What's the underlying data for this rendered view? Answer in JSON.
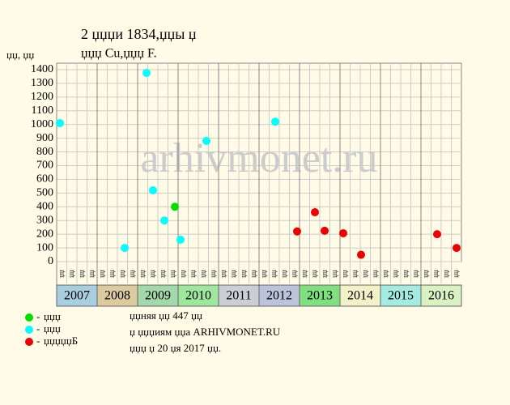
{
  "chart_data": {
    "type": "scatter",
    "title": "2 џџџи 1834,џџы џ",
    "subtitle": "џџџ Cu,џџџ F.",
    "y_label": "џџ, џџ",
    "watermark": "arhivmonet.ru",
    "xlim": [
      2007,
      2017
    ],
    "xticks": [
      2007,
      2008,
      2009,
      2010,
      2011,
      2012,
      2013,
      2014,
      2015,
      2016
    ],
    "xtick_colors": [
      "#a8cfe0",
      "#dccb9e",
      "#a2d8aa",
      "#9ee89e",
      "#cdcdd8",
      "#bcc4dc",
      "#80e080",
      "#f2f2c8",
      "#a4ece2",
      "#daf2c2"
    ],
    "quarter_labels": [
      "џџ",
      "џџ",
      "џџ",
      "џџ"
    ],
    "ylim": [
      0,
      1447
    ],
    "yticks": [
      0,
      100,
      200,
      300,
      400,
      500,
      600,
      700,
      800,
      900,
      1000,
      1100,
      1200,
      1300,
      1400
    ],
    "grid": true,
    "series": [
      {
        "name": "џџџ",
        "color": "#00e000",
        "x": [
          2009.92
        ],
        "values": [
          400
        ]
      },
      {
        "name": "џџџ",
        "color": "#00ffff",
        "x": [
          2007.08,
          2008.68,
          2009.22,
          2009.38,
          2009.66,
          2010.06,
          2010.7,
          2012.4
        ],
        "values": [
          1010,
          100,
          1376,
          520,
          300,
          160,
          880,
          1020
        ]
      },
      {
        "name": "џџџџџБ",
        "color": "#ee0000",
        "x": [
          2012.94,
          2013.38,
          2013.62,
          2014.08,
          2014.52,
          2016.4,
          2016.88
        ],
        "values": [
          220,
          360,
          225,
          207,
          50,
          200,
          100
        ]
      }
    ],
    "notes": [
      "џџняя џџ 447 џџ",
      "џ џџџиям џџа ARHIVMONET.RU",
      "џџџ џ 20 џя 2017 џџ."
    ]
  }
}
